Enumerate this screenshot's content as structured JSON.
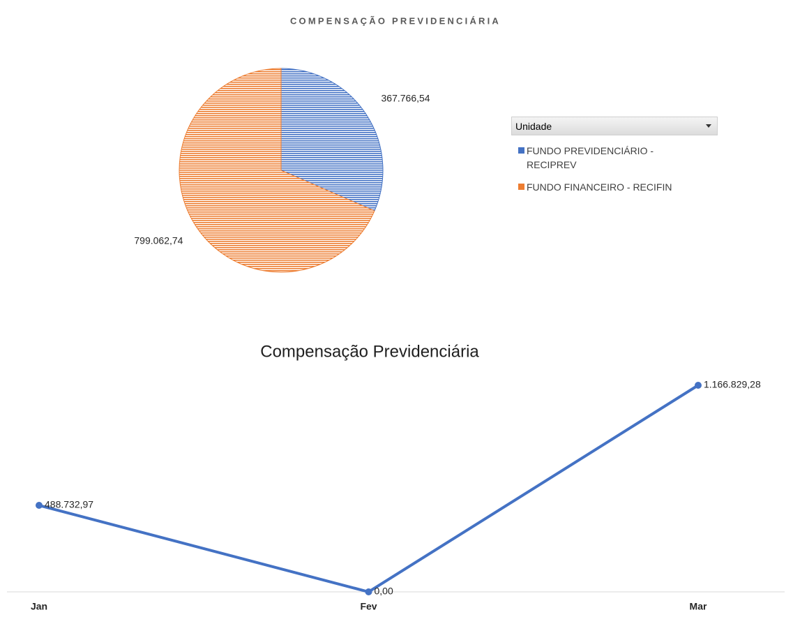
{
  "chart_data": [
    {
      "type": "pie",
      "title": "COMPENSAÇÃO PREVIDENCIÁRIA",
      "legend_title": "Unidade",
      "categories": [
        "FUNDO PREVIDENCIÁRIO - RECIPREV",
        "FUNDO FINANCEIRO - RECIFIN"
      ],
      "values": [
        367766.54,
        799062.74
      ],
      "value_labels": [
        "367.766,54",
        "799.062,74"
      ],
      "colors": [
        "#4472c4",
        "#ed7d31"
      ],
      "legend": "right"
    },
    {
      "type": "line",
      "title": "Compensação Previdenciária",
      "categories": [
        "Jan",
        "Fev",
        "Mar"
      ],
      "values": [
        488732.97,
        0,
        1166829.28
      ],
      "value_labels": [
        "488.732,97",
        "0,00",
        "1.166.829,28"
      ],
      "color": "#4472c4",
      "ylim": [
        0,
        1166829.28
      ]
    }
  ]
}
